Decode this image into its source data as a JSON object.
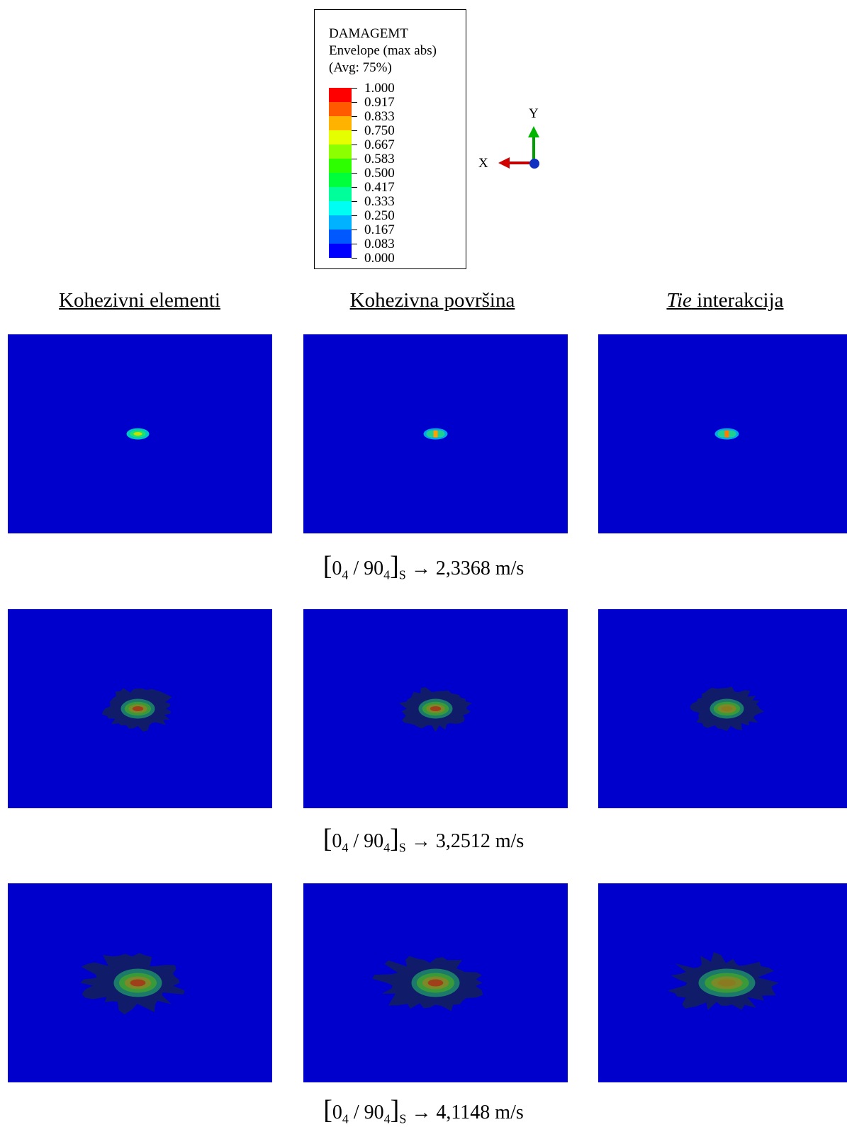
{
  "legend": {
    "title": "DAMAGEMT",
    "subtitle": "Envelope (max abs)",
    "avg": "(Avg: 75%)",
    "ticks": [
      "1.000",
      "0.917",
      "0.833",
      "0.750",
      "0.667",
      "0.583",
      "0.500",
      "0.417",
      "0.333",
      "0.250",
      "0.167",
      "0.083",
      "0.000"
    ],
    "colors": [
      "#ff0000",
      "#ff5a00",
      "#ffb300",
      "#e6ff00",
      "#8cff00",
      "#2eff00",
      "#00ff3b",
      "#00ff9a",
      "#00fff2",
      "#00b2ff",
      "#0059ff",
      "#0000ff"
    ]
  },
  "axes": {
    "y_label": "Y",
    "x_label": "X"
  },
  "columns": [
    {
      "label_italic": "",
      "label": "Kohezivni elementi"
    },
    {
      "label_italic": "",
      "label": "Kohezivna površina"
    },
    {
      "label_italic": "Tie",
      "label": " interakcija"
    }
  ],
  "rows": [
    {
      "caption_prefix": "0",
      "sub1": "4",
      "mid": " / 90",
      "sub2": "4",
      "sub3": "S",
      "arrow": "→",
      "velocity": "2,3368 m/s"
    },
    {
      "caption_prefix": "0",
      "sub1": "4",
      "mid": " / 90",
      "sub2": "4",
      "sub3": "S",
      "arrow": "→",
      "velocity": "3,2512 m/s"
    },
    {
      "caption_prefix": "0",
      "sub1": "4",
      "mid": " / 90",
      "sub2": "4",
      "sub3": "S",
      "arrow": "→",
      "velocity": "4,1148 m/s"
    }
  ],
  "colors": {
    "background_panel": "#0000cd"
  }
}
